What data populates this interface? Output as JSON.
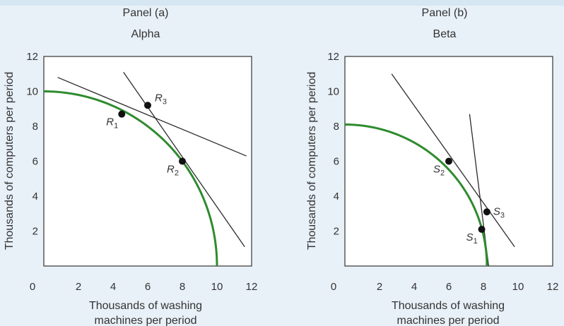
{
  "chart_data": [
    {
      "type": "line",
      "panel": "Panel (a)",
      "title": "Alpha",
      "xlabel_line1": "Thousands of washing",
      "xlabel_line2": "machines per period",
      "ylabel": "Thousands of computers per period",
      "xlim": [
        0,
        12
      ],
      "ylim": [
        0,
        12
      ],
      "xticks": [
        0,
        2,
        4,
        6,
        8,
        10,
        12
      ],
      "yticks": [
        2,
        4,
        6,
        8,
        10,
        12
      ],
      "curve": {
        "type": "quarter-ellipse",
        "x_intercept": 10,
        "y_intercept": 10,
        "color": "#2e8b2e"
      },
      "tangent_lines": [
        {
          "through": "R1",
          "x": [
            0.8,
            11.7
          ],
          "y": [
            10.8,
            6.3
          ]
        },
        {
          "through": "R2",
          "x": [
            4.6,
            11.6
          ],
          "y": [
            11.1,
            1.1
          ]
        }
      ],
      "points": [
        {
          "base": "R",
          "sub": "1",
          "x": 4.5,
          "y": 8.7,
          "label_side": "below-left"
        },
        {
          "base": "R",
          "sub": "2",
          "x": 8.0,
          "y": 6.0,
          "label_side": "below-left"
        },
        {
          "base": "R",
          "sub": "3",
          "x": 6.0,
          "y": 9.2,
          "label_side": "above-right"
        }
      ]
    },
    {
      "type": "line",
      "panel": "Panel (b)",
      "title": "Beta",
      "xlabel_line1": "Thousands of washing",
      "xlabel_line2": "machines per period",
      "ylabel": "Thousands of computers per period",
      "xlim": [
        0,
        12
      ],
      "ylim": [
        0,
        12
      ],
      "xticks": [
        0,
        2,
        4,
        6,
        8,
        10,
        12
      ],
      "yticks": [
        2,
        4,
        6,
        8,
        10,
        12
      ],
      "curve": {
        "type": "quarter-ellipse",
        "x_intercept": 8.2,
        "y_intercept": 8.1,
        "color": "#2e8b2e"
      },
      "tangent_lines": [
        {
          "through": "S2",
          "x": [
            2.7,
            9.8
          ],
          "y": [
            11.0,
            1.1
          ]
        },
        {
          "through": "S1",
          "x": [
            7.2,
            8.3
          ],
          "y": [
            8.7,
            0.0
          ]
        }
      ],
      "points": [
        {
          "base": "S",
          "sub": "1",
          "x": 7.9,
          "y": 2.1,
          "label_side": "below-left"
        },
        {
          "base": "S",
          "sub": "2",
          "x": 6.0,
          "y": 6.0,
          "label_side": "below-left"
        },
        {
          "base": "S",
          "sub": "3",
          "x": 8.2,
          "y": 3.1,
          "label_side": "right"
        }
      ]
    }
  ]
}
